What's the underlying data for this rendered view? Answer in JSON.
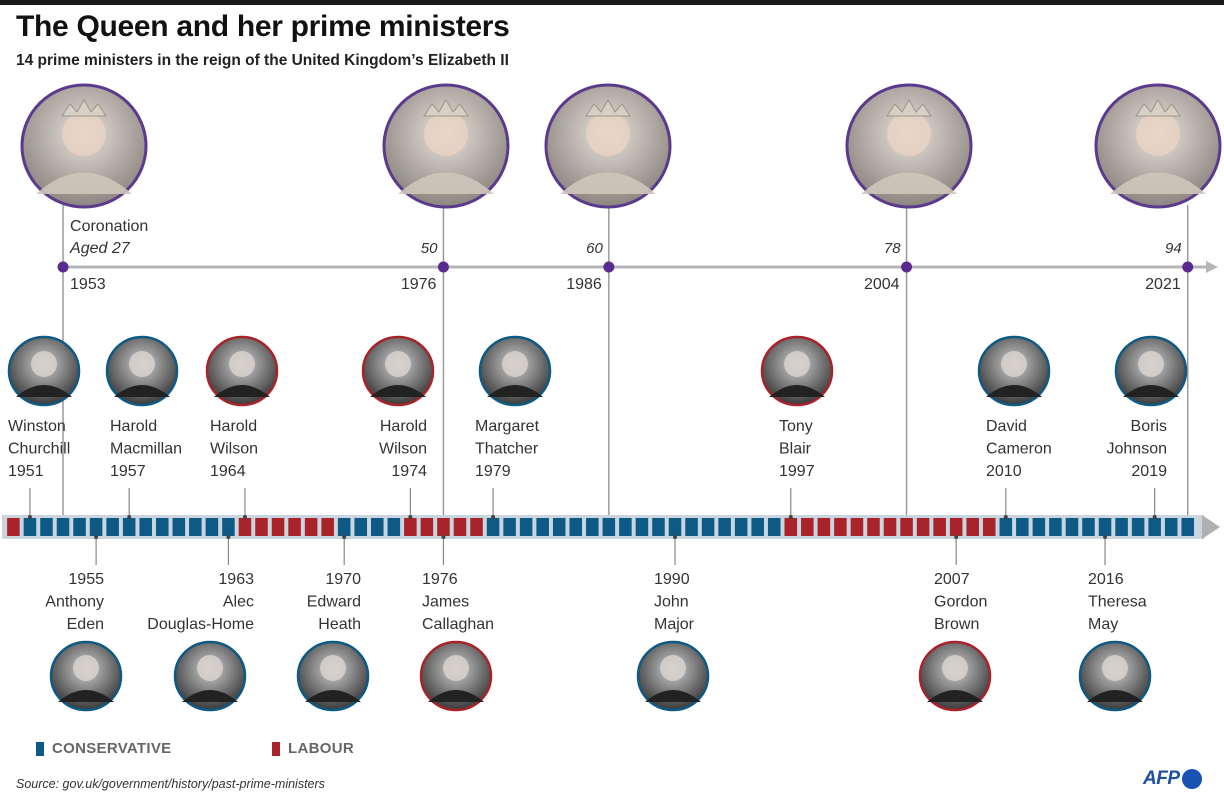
{
  "header": {
    "title": "The Queen and her prime ministers",
    "subtitle": "14 prime ministers in the reign of the United Kingdom’s Elizabeth II"
  },
  "colors": {
    "conservative": "#0f5a85",
    "labour": "#a8232a",
    "queen_ring": "#5b3a8e",
    "axis": "#b5b5b5",
    "afp_blue": "#1a52b3"
  },
  "queen_timeline": {
    "events": [
      {
        "year": "1953",
        "label": "Coronation",
        "age_label": "Aged 27",
        "photo": "queen-portrait-1953"
      },
      {
        "year": "1976",
        "label": "",
        "age_label": "50",
        "photo": "queen-portrait-1976"
      },
      {
        "year": "1986",
        "label": "",
        "age_label": "60",
        "photo": "queen-portrait-1986"
      },
      {
        "year": "2004",
        "label": "",
        "age_label": "78",
        "photo": "queen-portrait-2004"
      },
      {
        "year": "2021",
        "label": "",
        "age_label": "94",
        "photo": "queen-portrait-2021"
      }
    ]
  },
  "chart_data": {
    "type": "timeline",
    "title": "The Queen and her prime ministers",
    "subtitle": "14 prime ministers in the reign of the United Kingdom’s Elizabeth II",
    "x_range": [
      1950,
      2021
    ],
    "party_by_year": [
      {
        "from": 1950,
        "to": 1950,
        "party": "labour"
      },
      {
        "from": 1951,
        "to": 1963,
        "party": "conservative"
      },
      {
        "from": 1964,
        "to": 1969,
        "party": "labour"
      },
      {
        "from": 1970,
        "to": 1973,
        "party": "conservative"
      },
      {
        "from": 1974,
        "to": 1978,
        "party": "labour"
      },
      {
        "from": 1979,
        "to": 1996,
        "party": "conservative"
      },
      {
        "from": 1997,
        "to": 2009,
        "party": "labour"
      },
      {
        "from": 2010,
        "to": 2021,
        "party": "conservative"
      }
    ],
    "prime_ministers": [
      {
        "first": "Winston",
        "last": "Churchill",
        "year": 1951,
        "party": "conservative",
        "position": "above"
      },
      {
        "first": "Anthony",
        "last": "Eden",
        "year": 1955,
        "party": "conservative",
        "position": "below"
      },
      {
        "first": "Harold",
        "last": "Macmillan",
        "year": 1957,
        "party": "conservative",
        "position": "above"
      },
      {
        "first": "Alec",
        "last": "Douglas-Home",
        "year": 1963,
        "party": "conservative",
        "position": "below"
      },
      {
        "first": "Harold",
        "last": "Wilson",
        "year": 1964,
        "party": "labour",
        "position": "above"
      },
      {
        "first": "Edward",
        "last": "Heath",
        "year": 1970,
        "party": "conservative",
        "position": "below"
      },
      {
        "first": "Harold",
        "last": "Wilson",
        "year": 1974,
        "party": "labour",
        "position": "above"
      },
      {
        "first": "James",
        "last": "Callaghan",
        "year": 1976,
        "party": "labour",
        "position": "below"
      },
      {
        "first": "Margaret",
        "last": "Thatcher",
        "year": 1979,
        "party": "conservative",
        "position": "above"
      },
      {
        "first": "John",
        "last": "Major",
        "year": 1990,
        "party": "conservative",
        "position": "below"
      },
      {
        "first": "Tony",
        "last": "Blair",
        "year": 1997,
        "party": "labour",
        "position": "above"
      },
      {
        "first": "Gordon",
        "last": "Brown",
        "year": 2007,
        "party": "labour",
        "position": "below"
      },
      {
        "first": "David",
        "last": "Cameron",
        "year": 2010,
        "party": "conservative",
        "position": "above"
      },
      {
        "first": "Theresa",
        "last": "May",
        "year": 2016,
        "party": "conservative",
        "position": "below"
      },
      {
        "first": "Boris",
        "last": "Johnson",
        "year": 2019,
        "party": "conservative",
        "position": "above"
      }
    ],
    "queen_milestones": [
      {
        "year": 1953,
        "age": 27,
        "label": "Coronation"
      },
      {
        "year": 1976,
        "age": 50
      },
      {
        "year": 1986,
        "age": 60
      },
      {
        "year": 2004,
        "age": 78
      },
      {
        "year": 2021,
        "age": 94
      }
    ],
    "legend": [
      {
        "label": "CONSERVATIVE",
        "party": "conservative"
      },
      {
        "label": "LABOUR",
        "party": "labour"
      }
    ],
    "legend_position": "bottom-left"
  },
  "legend": {
    "conservative_label": "CONSERVATIVE",
    "labour_label": "LABOUR"
  },
  "footer": {
    "source": "Source: gov.uk/government/history/past-prime-ministers",
    "logo": "AFP"
  }
}
